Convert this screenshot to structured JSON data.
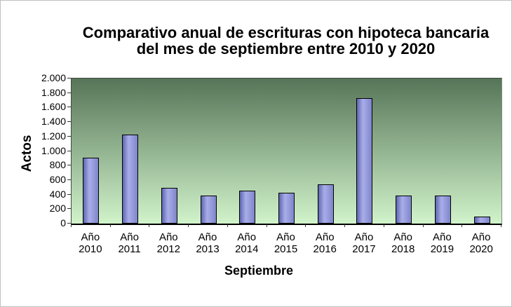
{
  "chart_data": {
    "type": "bar",
    "title": "Comparativo anual de escrituras con hipoteca bancaria del mes de septiembre entre 2010 y 2020",
    "title_line1": "Comparativo anual de escrituras con hipoteca bancaria",
    "title_line2": "del mes de septiembre entre 2010 y 2020",
    "ylabel": "Actos",
    "xlabel": "Septiembre",
    "category_prefix": "Año",
    "categories": [
      "2010",
      "2011",
      "2012",
      "2013",
      "2014",
      "2015",
      "2016",
      "2017",
      "2018",
      "2019",
      "2020"
    ],
    "values": [
      905,
      1230,
      495,
      385,
      450,
      425,
      540,
      1725,
      385,
      385,
      100
    ],
    "ylim": [
      0,
      2000
    ],
    "ytick_step": 200,
    "ytick_labels": [
      "2.000",
      "1.800",
      "1.600",
      "1.400",
      "1.200",
      "1.000",
      "800",
      "600",
      "400",
      "200",
      "0"
    ],
    "grid": false,
    "legend": "none",
    "colors": {
      "bar_left": "#5f66b0",
      "bar_highlight": "#a9aee9",
      "bar_right": "#7f85cb",
      "bar_border": "#000000",
      "plot_top": "#567558",
      "plot_bottom": "#d1f3ca",
      "axis": "#000000",
      "text": "#000000",
      "frame_border": "#c0c0c0",
      "background": "#ffffff"
    }
  }
}
